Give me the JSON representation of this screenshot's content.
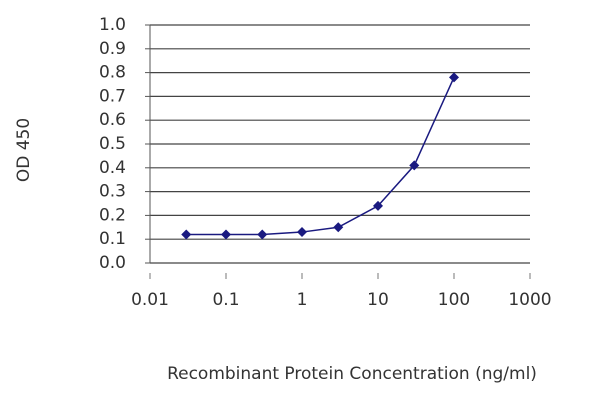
{
  "chart_data": {
    "type": "line",
    "x_label": "Recombinant Protein Concentration (ng/ml)",
    "y_label": "OD 450",
    "x": [
      0.03,
      0.1,
      0.3,
      1,
      3,
      10,
      30,
      100
    ],
    "values": [
      0.12,
      0.12,
      0.12,
      0.13,
      0.15,
      0.24,
      0.41,
      0.78
    ],
    "color": "#1a1a80",
    "xscale": "log",
    "xlim": [
      0.01,
      1000
    ],
    "xticks": [
      0.01,
      0.1,
      1,
      10,
      100,
      1000
    ],
    "ylim": [
      0,
      1
    ],
    "yticks": [
      {
        "value": 0,
        "label": "0.0"
      },
      0.1,
      0.2,
      0.3,
      0.4,
      0.5,
      0.6,
      0.7,
      0.8,
      0.9,
      {
        "value": 1,
        "label": "1.0"
      }
    ],
    "grid": true
  }
}
